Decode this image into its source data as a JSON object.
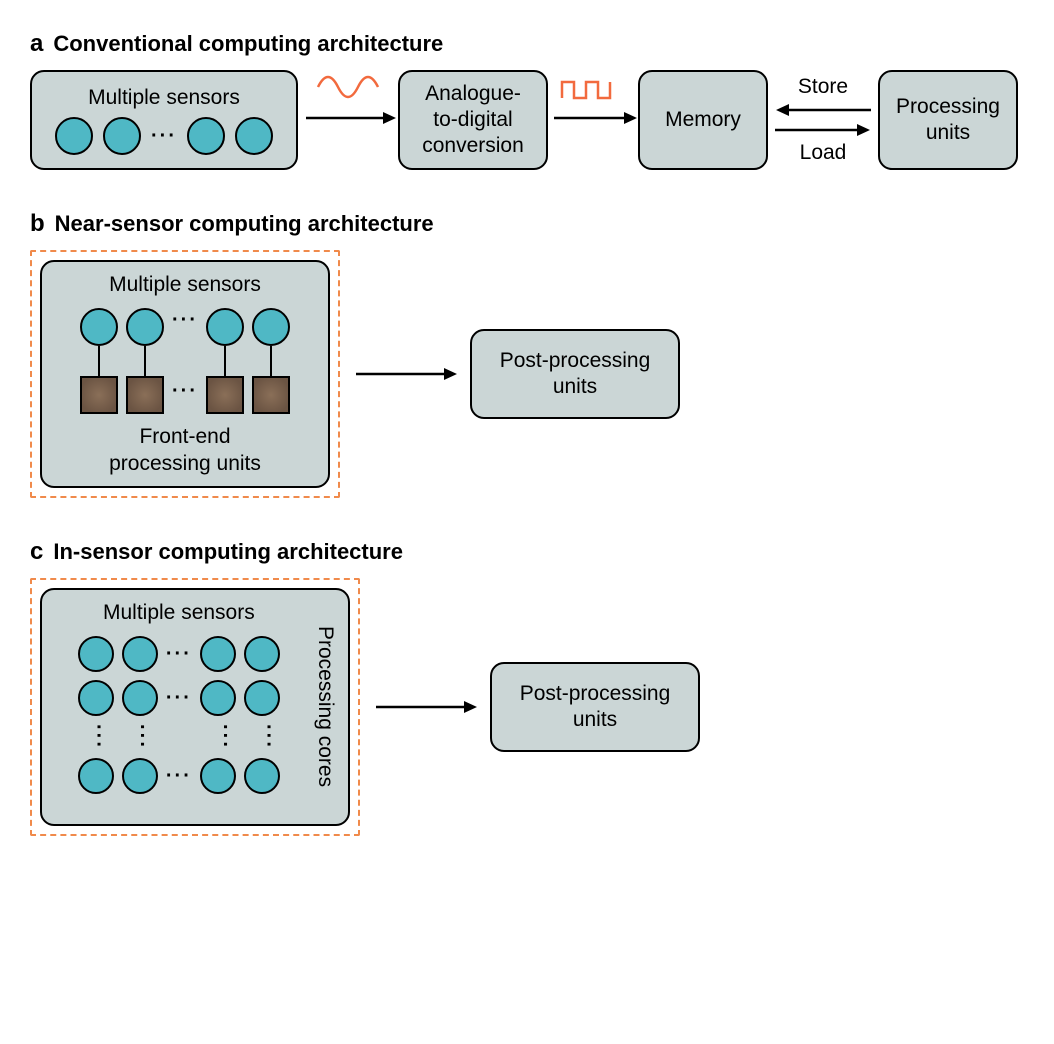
{
  "colors": {
    "box_fill": "#cbd6d6",
    "sensor_fill": "#4fb8c5",
    "proc_fill": "#6b5443",
    "dashed_border": "#f08a4b",
    "signal": "#f26a3e",
    "arrow": "#000000",
    "bg": "#ffffff"
  },
  "geometry": {
    "sensor_d": 34,
    "sensor_d_small": 32,
    "proc_size": 34,
    "connector_h": 30,
    "box_radius": 14
  },
  "panels": {
    "a": {
      "letter": "a",
      "title": "Conventional computing architecture",
      "sensors_label": "Multiple sensors",
      "adc_label": "Analogue-\nto-digital\nconversion",
      "memory_label": "Memory",
      "proc_label": "Processing\nunits",
      "store_label": "Store",
      "load_label": "Load"
    },
    "b": {
      "letter": "b",
      "title": "Near-sensor computing architecture",
      "sensors_label": "Multiple sensors",
      "frontend_label": "Front-end\nprocessing units",
      "post_label": "Post-processing\nunits"
    },
    "c": {
      "letter": "c",
      "title": "In-sensor computing architecture",
      "sensors_label": "Multiple sensors",
      "cores_label": "Processing cores",
      "post_label": "Post-processing\nunits"
    }
  }
}
